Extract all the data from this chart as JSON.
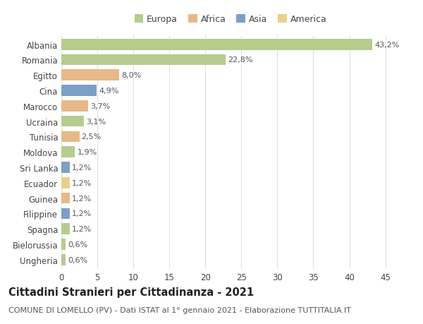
{
  "categories": [
    "Albania",
    "Romania",
    "Egitto",
    "Cina",
    "Marocco",
    "Ucraina",
    "Tunisia",
    "Moldova",
    "Sri Lanka",
    "Ecuador",
    "Guinea",
    "Filippine",
    "Spagna",
    "Bielorussia",
    "Ungheria"
  ],
  "values": [
    43.2,
    22.8,
    8.0,
    4.9,
    3.7,
    3.1,
    2.5,
    1.9,
    1.2,
    1.2,
    1.2,
    1.2,
    1.2,
    0.6,
    0.6
  ],
  "labels": [
    "43,2%",
    "22,8%",
    "8,0%",
    "4,9%",
    "3,7%",
    "3,1%",
    "2,5%",
    "1,9%",
    "1,2%",
    "1,2%",
    "1,2%",
    "1,2%",
    "1,2%",
    "0,6%",
    "0,6%"
  ],
  "colors": [
    "#b5cc8e",
    "#b5cc8e",
    "#e8b88a",
    "#7b9fc7",
    "#e8b88a",
    "#b5cc8e",
    "#e8b88a",
    "#b5cc8e",
    "#7b9fc7",
    "#e8d08a",
    "#e8b88a",
    "#7b9fc7",
    "#b5cc8e",
    "#b5cc8e",
    "#b5cc8e"
  ],
  "legend_labels": [
    "Europa",
    "Africa",
    "Asia",
    "America"
  ],
  "legend_colors": [
    "#b5cc8e",
    "#e8b88a",
    "#7b9fc7",
    "#e8d08a"
  ],
  "title": "Cittadini Stranieri per Cittadinanza - 2021",
  "subtitle": "COMUNE DI LOMELLO (PV) - Dati ISTAT al 1° gennaio 2021 - Elaborazione TUTTITALIA.IT",
  "xlim": [
    0,
    47
  ],
  "xticks": [
    0,
    5,
    10,
    15,
    20,
    25,
    30,
    35,
    40,
    45
  ],
  "background_color": "#ffffff",
  "grid_color": "#e0e0e0",
  "bar_height": 0.72,
  "label_fontsize": 8,
  "title_fontsize": 10.5,
  "subtitle_fontsize": 8,
  "tick_fontsize": 8.5,
  "legend_fontsize": 9
}
